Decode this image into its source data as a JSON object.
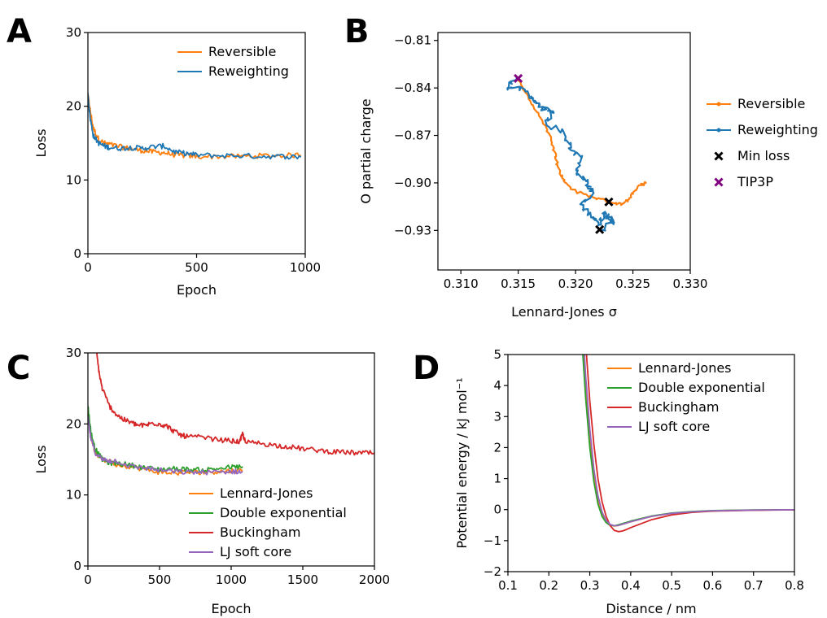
{
  "colors": {
    "orange": "#ff7f0e",
    "blue": "#1f77b4",
    "green": "#2ca02c",
    "red": "#d62728",
    "purple": "#9467bd",
    "black": "#000000",
    "magenta": "#800080"
  },
  "chart_data": [
    {
      "panel": "A",
      "type": "line",
      "xlabel": "Epoch",
      "ylabel": "Loss",
      "xlim": [
        0,
        1000
      ],
      "ylim": [
        0,
        30
      ],
      "xticks": [
        "0",
        "500",
        "1000"
      ],
      "yticks": [
        "0",
        "10",
        "20",
        "30"
      ],
      "legend_position": "top-right",
      "series": [
        {
          "name": "Reversible",
          "color": "orange",
          "x": [
            0,
            10,
            25,
            50,
            75,
            100,
            150,
            200,
            250,
            300,
            350,
            400,
            450,
            500,
            600,
            700,
            800,
            900,
            980
          ],
          "y": [
            21.5,
            19.5,
            17.0,
            15.5,
            15.0,
            14.8,
            14.5,
            14.2,
            14.0,
            13.8,
            13.7,
            13.4,
            13.3,
            13.2,
            13.2,
            13.2,
            13.3,
            13.3,
            13.4
          ]
        },
        {
          "name": "Reweighting",
          "color": "blue",
          "x": [
            0,
            10,
            25,
            50,
            75,
            100,
            150,
            200,
            250,
            300,
            350,
            400,
            450,
            500,
            600,
            700,
            800,
            900,
            980
          ],
          "y": [
            21.8,
            18.5,
            16.0,
            15.0,
            14.6,
            14.4,
            14.3,
            14.4,
            14.3,
            14.5,
            14.6,
            13.8,
            13.6,
            13.4,
            13.3,
            13.3,
            13.2,
            13.2,
            13.1
          ]
        }
      ]
    },
    {
      "panel": "B",
      "type": "line",
      "xlabel": "Lennard-Jones σ",
      "ylabel": "O partial charge",
      "xlim": [
        0.308,
        0.33
      ],
      "ylim": [
        -0.955,
        -0.805
      ],
      "xticks": [
        "0.310",
        "0.315",
        "0.320",
        "0.325",
        "0.330"
      ],
      "yticks": [
        "−0.81",
        "−0.84",
        "−0.87",
        "−0.90",
        "−0.93"
      ],
      "legend_position": "right-outside",
      "series": [
        {
          "name": "Reversible",
          "color": "orange",
          "x": [
            0.315,
            0.3155,
            0.3165,
            0.3175,
            0.318,
            0.3183,
            0.3185,
            0.319,
            0.32,
            0.3215,
            0.323,
            0.324,
            0.3245,
            0.325,
            0.3258,
            0.3262
          ],
          "y": [
            -0.8335,
            -0.8415,
            -0.853,
            -0.866,
            -0.875,
            -0.884,
            -0.891,
            -0.899,
            -0.9055,
            -0.909,
            -0.912,
            -0.9135,
            -0.911,
            -0.906,
            -0.901,
            -0.9
          ]
        },
        {
          "name": "Reweighting",
          "color": "blue",
          "x": [
            0.315,
            0.314,
            0.3155,
            0.3165,
            0.317,
            0.318,
            0.3175,
            0.319,
            0.3195,
            0.3205,
            0.32,
            0.321,
            0.3215,
            0.3205,
            0.3215,
            0.322,
            0.3225,
            0.3228,
            0.3235,
            0.3222
          ],
          "y": [
            -0.8335,
            -0.8395,
            -0.841,
            -0.849,
            -0.852,
            -0.8555,
            -0.863,
            -0.868,
            -0.879,
            -0.883,
            -0.893,
            -0.9,
            -0.906,
            -0.915,
            -0.921,
            -0.9255,
            -0.919,
            -0.922,
            -0.9235,
            -0.93
          ]
        },
        {
          "name": "Min loss",
          "color": "black",
          "marker": "x",
          "x": [
            0.3229,
            0.3221
          ],
          "y": [
            -0.912,
            -0.9295
          ]
        },
        {
          "name": "TIP3P",
          "color": "magenta",
          "marker": "x",
          "x": [
            0.315
          ],
          "y": [
            -0.834
          ]
        }
      ]
    },
    {
      "panel": "C",
      "type": "line",
      "xlabel": "Epoch",
      "ylabel": "Loss",
      "xlim": [
        0,
        2000
      ],
      "ylim": [
        0,
        30
      ],
      "xticks": [
        "0",
        "500",
        "1000",
        "1500",
        "2000"
      ],
      "yticks": [
        "0",
        "10",
        "20",
        "30"
      ],
      "legend_position": "lower-center",
      "series": [
        {
          "name": "Lennard-Jones",
          "color": "orange",
          "x": [
            0,
            20,
            50,
            100,
            150,
            200,
            300,
            400,
            500,
            600,
            700,
            800,
            900,
            1000,
            1080
          ],
          "y": [
            21.5,
            18.5,
            16.0,
            15.0,
            14.7,
            14.3,
            14.0,
            13.6,
            13.2,
            13.1,
            13.2,
            13.2,
            13.3,
            13.4,
            13.5
          ]
        },
        {
          "name": "Double exponential",
          "color": "green",
          "x": [
            0,
            20,
            50,
            100,
            150,
            200,
            300,
            400,
            500,
            600,
            700,
            800,
            900,
            1000,
            1080
          ],
          "y": [
            22.5,
            19.0,
            16.5,
            15.0,
            14.5,
            14.5,
            14.2,
            13.8,
            13.6,
            13.7,
            13.6,
            13.5,
            13.7,
            13.9,
            14.0
          ]
        },
        {
          "name": "Buckingham",
          "color": "red",
          "x": [
            60,
            80,
            100,
            150,
            200,
            250,
            300,
            350,
            400,
            450,
            500,
            550,
            600,
            650,
            700,
            800,
            900,
            1000,
            1060,
            1080,
            1100,
            1200,
            1300,
            1400,
            1500,
            1600,
            1700,
            1800,
            1900,
            2000
          ],
          "y": [
            30.0,
            27.0,
            25.0,
            22.5,
            21.3,
            20.6,
            20.2,
            19.8,
            19.8,
            20.1,
            20.0,
            19.7,
            19.0,
            18.4,
            18.2,
            18.1,
            17.8,
            17.6,
            17.5,
            18.6,
            17.4,
            17.3,
            17.0,
            16.8,
            16.5,
            16.3,
            16.1,
            16.0,
            15.9,
            15.9
          ]
        },
        {
          "name": "LJ soft core",
          "color": "purple",
          "x": [
            0,
            20,
            50,
            100,
            150,
            200,
            300,
            400,
            500,
            600,
            700,
            800,
            900,
            1000,
            1080
          ],
          "y": [
            21.0,
            18.0,
            16.0,
            15.0,
            14.8,
            14.8,
            14.0,
            13.8,
            13.5,
            13.3,
            13.2,
            13.2,
            13.2,
            13.3,
            13.3
          ]
        }
      ]
    },
    {
      "panel": "D",
      "type": "line",
      "xlabel": "Distance / nm",
      "ylabel": "Potential energy / kJ mol⁻¹",
      "xlim": [
        0.1,
        0.8
      ],
      "ylim": [
        -2,
        5
      ],
      "xticks": [
        "0.1",
        "0.2",
        "0.3",
        "0.4",
        "0.5",
        "0.6",
        "0.7",
        "0.8"
      ],
      "yticks": [
        "−2",
        "−1",
        "0",
        "1",
        "2",
        "3",
        "4",
        "5"
      ],
      "legend_position": "top-right",
      "series": [
        {
          "name": "Lennard-Jones",
          "color": "orange",
          "x": [
            0.285,
            0.29,
            0.3,
            0.31,
            0.32,
            0.33,
            0.34,
            0.35,
            0.36,
            0.37,
            0.38,
            0.4,
            0.45,
            0.5,
            0.55,
            0.6,
            0.7,
            0.8
          ],
          "y": [
            5.0,
            3.9,
            2.3,
            1.15,
            0.35,
            -0.12,
            -0.38,
            -0.5,
            -0.53,
            -0.51,
            -0.47,
            -0.39,
            -0.22,
            -0.12,
            -0.07,
            -0.04,
            -0.015,
            -0.006
          ]
        },
        {
          "name": "Double exponential",
          "color": "green",
          "x": [
            0.283,
            0.29,
            0.3,
            0.31,
            0.32,
            0.33,
            0.34,
            0.35,
            0.36,
            0.37,
            0.38,
            0.4,
            0.45,
            0.5,
            0.55,
            0.6,
            0.7,
            0.8
          ],
          "y": [
            5.0,
            3.6,
            2.0,
            0.9,
            0.18,
            -0.22,
            -0.42,
            -0.51,
            -0.52,
            -0.49,
            -0.45,
            -0.37,
            -0.21,
            -0.11,
            -0.06,
            -0.03,
            -0.01,
            -0.004
          ]
        },
        {
          "name": "Buckingham",
          "color": "red",
          "x": [
            0.292,
            0.3,
            0.31,
            0.32,
            0.33,
            0.34,
            0.35,
            0.36,
            0.37,
            0.38,
            0.39,
            0.4,
            0.45,
            0.5,
            0.55,
            0.6,
            0.7,
            0.8
          ],
          "y": [
            5.0,
            3.5,
            2.1,
            1.0,
            0.25,
            -0.22,
            -0.52,
            -0.67,
            -0.71,
            -0.69,
            -0.64,
            -0.58,
            -0.33,
            -0.17,
            -0.09,
            -0.05,
            -0.02,
            -0.008
          ]
        },
        {
          "name": "LJ soft core",
          "color": "purple",
          "x": [
            0.287,
            0.29,
            0.3,
            0.31,
            0.32,
            0.33,
            0.34,
            0.35,
            0.36,
            0.37,
            0.38,
            0.4,
            0.45,
            0.5,
            0.55,
            0.6,
            0.7,
            0.8
          ],
          "y": [
            5.0,
            4.3,
            2.6,
            1.3,
            0.45,
            -0.08,
            -0.35,
            -0.48,
            -0.52,
            -0.51,
            -0.47,
            -0.39,
            -0.22,
            -0.12,
            -0.07,
            -0.04,
            -0.015,
            -0.006
          ]
        }
      ]
    }
  ]
}
